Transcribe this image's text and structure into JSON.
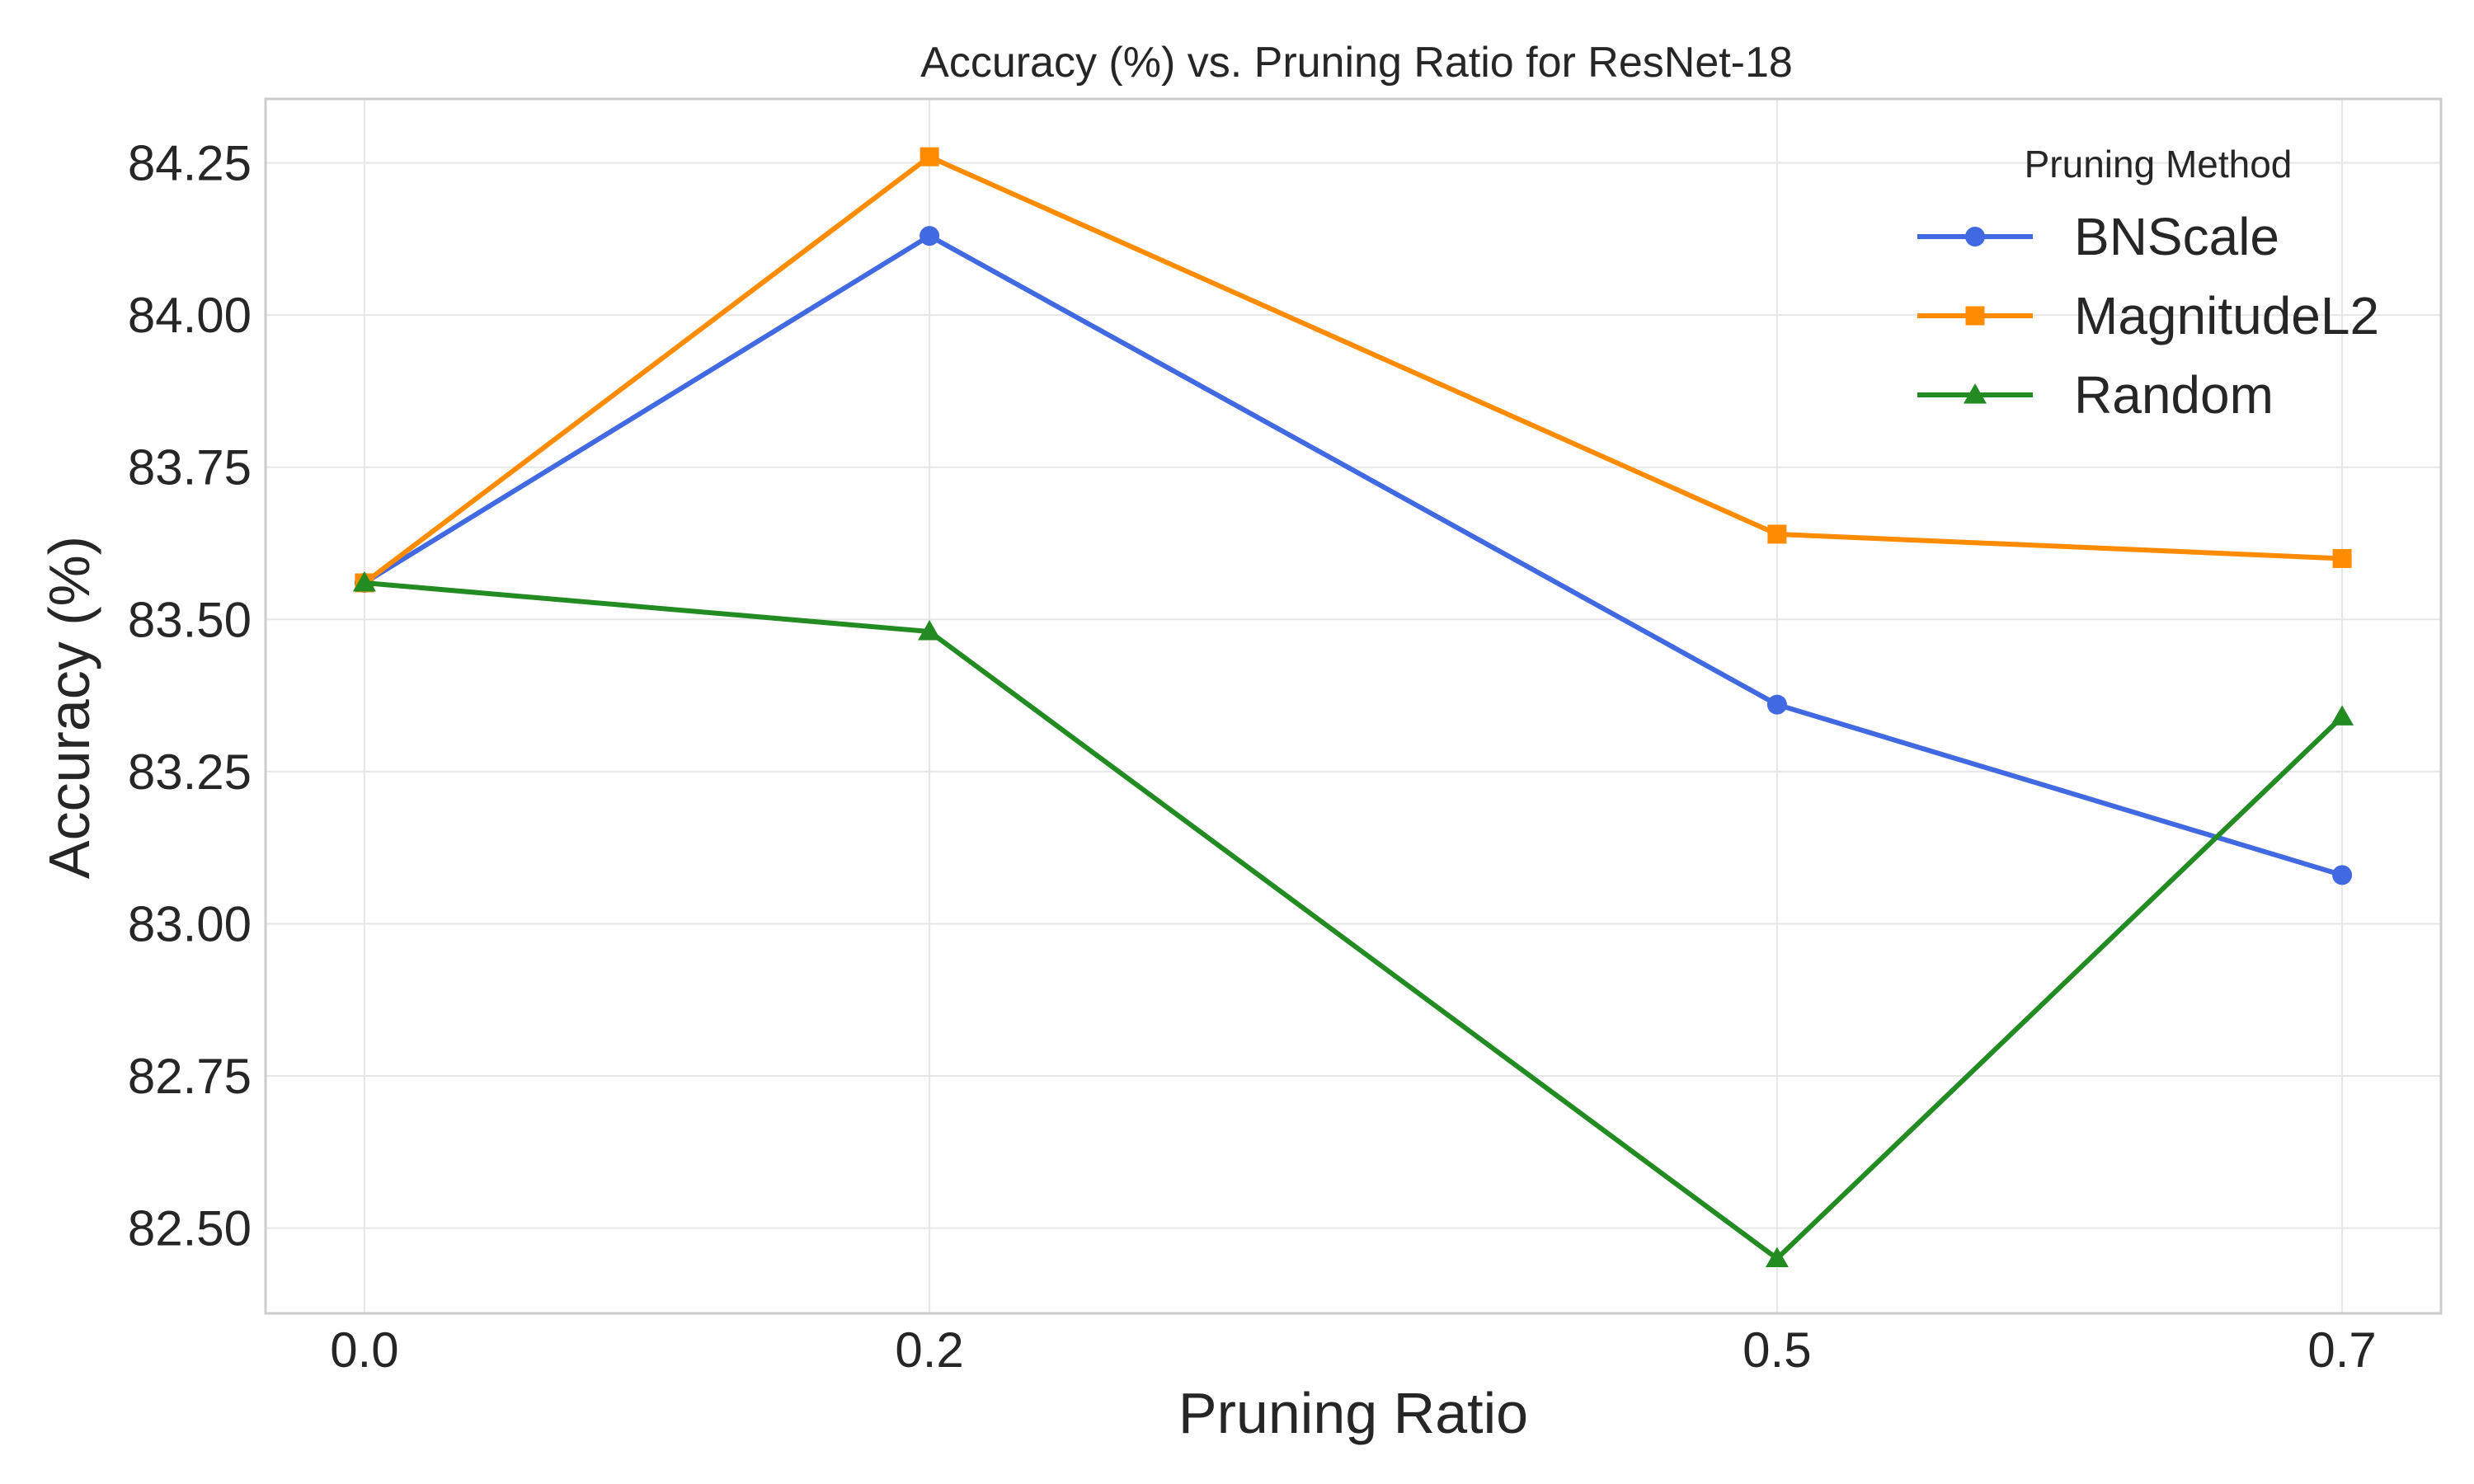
{
  "chart_data": {
    "type": "line",
    "title": "Accuracy (%) vs. Pruning Ratio for ResNet-18",
    "xlabel": "Pruning Ratio",
    "ylabel": "Accuracy (%)",
    "x": [
      0.0,
      0.2,
      0.5,
      0.7
    ],
    "x_tick_labels": [
      "0.0",
      "0.2",
      "0.5",
      "0.7"
    ],
    "xlim": [
      -0.035,
      0.735
    ],
    "ylim": [
      82.36,
      84.355
    ],
    "y_ticks": [
      82.5,
      82.75,
      83.0,
      83.25,
      83.5,
      83.75,
      84.0,
      84.25
    ],
    "y_tick_labels": [
      "82.50",
      "82.75",
      "83.00",
      "83.25",
      "83.50",
      "83.75",
      "84.00",
      "84.25"
    ],
    "grid": true,
    "legend": {
      "title": "Pruning Method",
      "placement": "top-right"
    },
    "series": [
      {
        "name": "BNScale",
        "values": [
          83.56,
          84.13,
          83.36,
          83.08
        ],
        "color": "#4169e1",
        "marker": "circle"
      },
      {
        "name": "MagnitudeL2",
        "values": [
          83.56,
          84.26,
          83.64,
          83.6
        ],
        "color": "#ff8c00",
        "marker": "square"
      },
      {
        "name": "Random",
        "values": [
          83.56,
          83.48,
          82.45,
          83.34
        ],
        "color": "#228b22",
        "marker": "triangle"
      }
    ]
  }
}
